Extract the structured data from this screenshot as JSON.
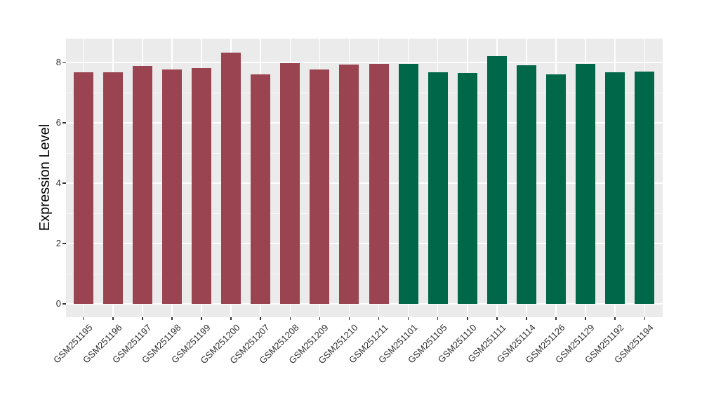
{
  "chart_data": {
    "type": "bar",
    "title": "",
    "xlabel": "",
    "ylabel": "Expression Level",
    "categories": [
      "GSM251195",
      "GSM251196",
      "GSM251197",
      "GSM251198",
      "GSM251199",
      "GSM251200",
      "GSM251207",
      "GSM251208",
      "GSM251209",
      "GSM251210",
      "GSM251211",
      "GSM251101",
      "GSM251105",
      "GSM251110",
      "GSM251111",
      "GSM251114",
      "GSM251126",
      "GSM251129",
      "GSM251192",
      "GSM251194"
    ],
    "values": [
      7.69,
      7.67,
      7.89,
      7.78,
      7.82,
      8.34,
      7.6,
      7.99,
      7.77,
      7.93,
      7.96,
      7.95,
      7.69,
      7.66,
      8.22,
      7.92,
      7.6,
      7.97,
      7.69,
      7.71
    ],
    "bar_colors": [
      "#9A4451",
      "#9A4451",
      "#9A4451",
      "#9A4451",
      "#9A4451",
      "#9A4451",
      "#9A4451",
      "#9A4451",
      "#9A4451",
      "#9A4451",
      "#9A4451",
      "#016749",
      "#016749",
      "#016749",
      "#016749",
      "#016749",
      "#016749",
      "#016749",
      "#016749",
      "#016749"
    ],
    "group_colors": {
      "maroon": "#9A4451",
      "green": "#016749"
    },
    "y_ticks": [
      0,
      2,
      4,
      6,
      8
    ],
    "y_minor_ticks": [
      1,
      3,
      5,
      7
    ],
    "ylim": [
      -0.43,
      8.81
    ],
    "x_tick_angle": 45,
    "legend": "none",
    "grid": "on",
    "panel_bg": "#EBEBEB",
    "grid_color": "#FFFFFF",
    "tick_label_color": "#303030",
    "axis_title_color": "#000000"
  }
}
